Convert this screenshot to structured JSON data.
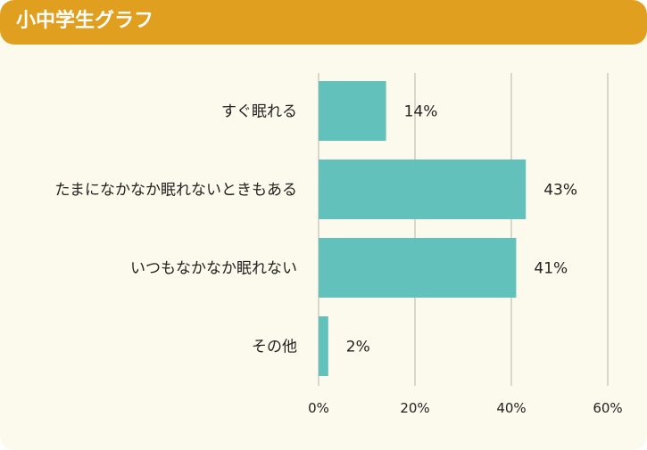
{
  "title": "小中学生グラフ",
  "colors": {
    "header": "#e09f1f",
    "background": "#fcfaec",
    "bar": "#62c2bb",
    "grid": "#d9d7cc"
  },
  "chart_data": {
    "type": "bar",
    "orientation": "horizontal",
    "categories": [
      "すぐ眠れる",
      "たまになかなか眠れないときもある",
      "いつもなかなか眠れない",
      "その他"
    ],
    "values": [
      14,
      43,
      41,
      2
    ],
    "value_labels": [
      "14%",
      "43%",
      "41%",
      "2%"
    ],
    "xlim": [
      0,
      60
    ],
    "x_ticks": [
      0,
      20,
      40,
      60
    ],
    "x_tick_labels": [
      "0%",
      "20%",
      "40%",
      "60%"
    ],
    "grid": true,
    "unit": "%"
  }
}
